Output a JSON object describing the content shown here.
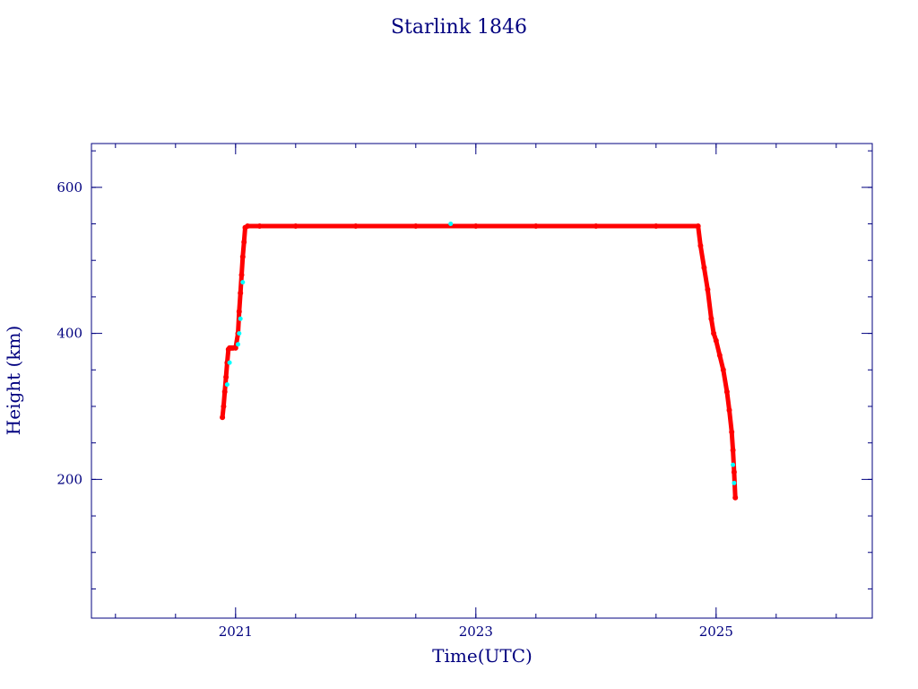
{
  "chart_data": {
    "type": "scatter",
    "title": "Starlink 1846",
    "xlabel": "Time(UTC)",
    "ylabel": "Height (km)",
    "xlim": [
      2019.8,
      2026.3
    ],
    "ylim": [
      10,
      660
    ],
    "x_ticks": [
      2021,
      2023,
      2025
    ],
    "y_ticks": [
      200,
      400,
      600
    ],
    "grid": false,
    "legend": "none",
    "colors": {
      "axis": "#00007f",
      "primary": "#ff0000",
      "secondary": "#00ffff"
    },
    "series": [
      {
        "color": "#ff0000",
        "x": [
          2020.89,
          2020.9,
          2020.91,
          2020.92,
          2020.93,
          2020.94,
          2020.95,
          2020.96,
          2020.97,
          2020.98,
          2021.0,
          2021.02,
          2021.03,
          2021.04,
          2021.05,
          2021.06,
          2021.07,
          2021.08,
          2021.1,
          2021.2,
          2021.5,
          2022.0,
          2022.5,
          2023.0,
          2023.5,
          2024.0,
          2024.5,
          2024.85,
          2024.87,
          2024.9,
          2024.93,
          2024.96,
          2024.98,
          2025.0,
          2025.03,
          2025.06,
          2025.09,
          2025.11,
          2025.13,
          2025.14,
          2025.15,
          2025.16
        ],
        "y": [
          285,
          300,
          320,
          340,
          360,
          378,
          380,
          380,
          380,
          380,
          380,
          400,
          430,
          455,
          480,
          505,
          525,
          545,
          547,
          547,
          547,
          547,
          547,
          547,
          547,
          547,
          547,
          547,
          520,
          490,
          460,
          420,
          400,
          390,
          370,
          350,
          320,
          295,
          265,
          240,
          210,
          175
        ]
      },
      {
        "color": "#00ffff",
        "x": [
          2020.93,
          2020.95,
          2021.02,
          2021.03,
          2021.04,
          2021.06,
          2022.79,
          2025.14,
          2025.15
        ],
        "y": [
          330,
          360,
          385,
          400,
          420,
          470,
          550,
          220,
          195
        ]
      }
    ]
  }
}
